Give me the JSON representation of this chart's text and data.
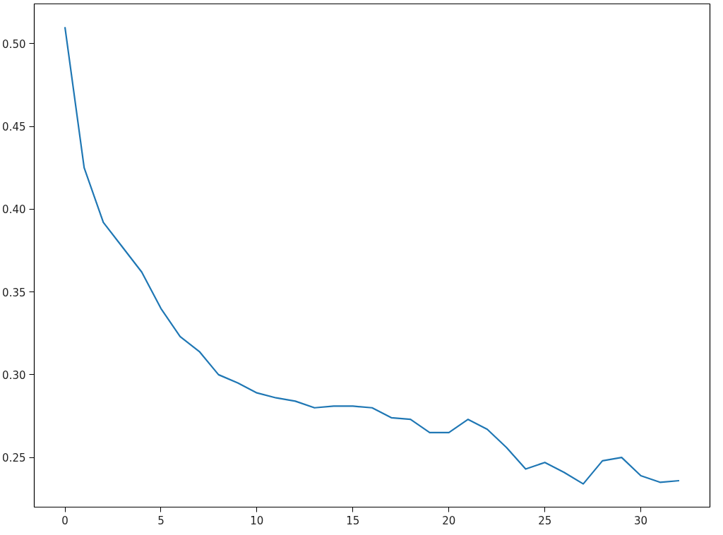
{
  "chart_data": {
    "type": "line",
    "x": [
      0,
      1,
      2,
      3,
      4,
      5,
      6,
      7,
      8,
      9,
      10,
      11,
      12,
      13,
      14,
      15,
      16,
      17,
      18,
      19,
      20,
      21,
      22,
      23,
      24,
      25,
      26,
      27,
      28,
      29,
      30,
      31,
      32
    ],
    "series": [
      {
        "color": "#1f77b4",
        "values": [
          0.51,
          0.425,
          0.392,
          0.377,
          0.362,
          0.34,
          0.323,
          0.314,
          0.3,
          0.295,
          0.289,
          0.286,
          0.284,
          0.28,
          0.281,
          0.281,
          0.28,
          0.274,
          0.273,
          0.265,
          0.265,
          0.273,
          0.267,
          0.256,
          0.243,
          0.247,
          0.241,
          0.234,
          0.248,
          0.25,
          0.239,
          0.235,
          0.236
        ]
      }
    ],
    "xlim": [
      -1.6,
      33.6
    ],
    "ylim": [
      0.22,
      0.524
    ],
    "xticks": [
      0,
      5,
      10,
      15,
      20,
      25,
      30
    ],
    "yticks": [
      {
        "value": 0.25,
        "label": "0.25"
      },
      {
        "value": 0.3,
        "label": "0.30"
      },
      {
        "value": 0.35,
        "label": "0.35"
      },
      {
        "value": 0.4,
        "label": "0.40"
      },
      {
        "value": 0.45,
        "label": "0.45"
      },
      {
        "value": 0.5,
        "label": "0.50"
      }
    ],
    "grid": false,
    "line_style": "solid"
  }
}
